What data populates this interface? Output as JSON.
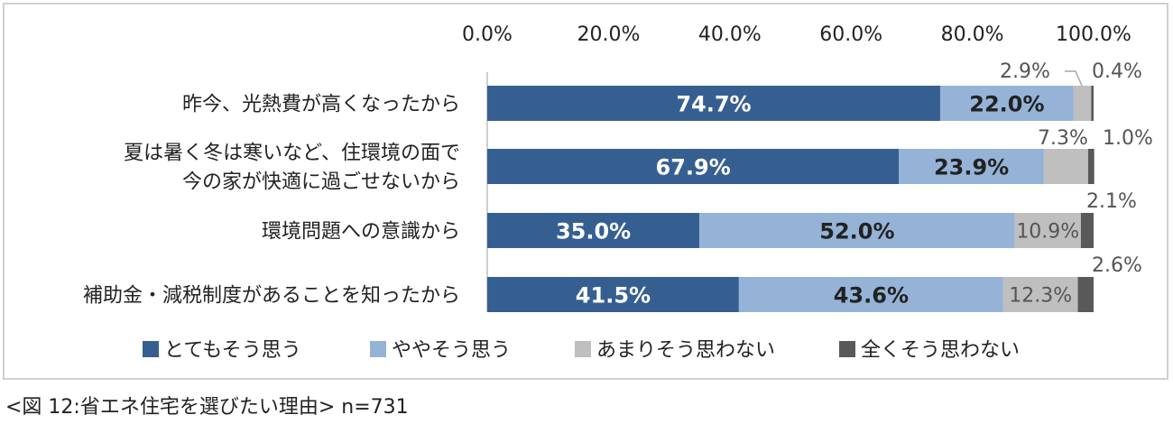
{
  "chart_data": {
    "type": "bar",
    "orientation": "horizontal",
    "stacked": true,
    "categories": [
      [
        "昨今、光熱費が高くなったから"
      ],
      [
        "夏は暑く冬は寒いなど、住環境の面で",
        "今の家が快適に過ごせないから"
      ],
      [
        "環境問題への意識から"
      ],
      [
        "補助金・減税制度があることを知ったから"
      ]
    ],
    "series": [
      {
        "name": "とてもそう思う",
        "values": [
          74.7,
          67.9,
          35.0,
          41.5
        ],
        "labels": [
          "74.7%",
          "67.9%",
          "35.0%",
          "41.5%"
        ],
        "color": "#365f91"
      },
      {
        "name": "ややそう思う",
        "values": [
          22.0,
          23.9,
          52.0,
          43.6
        ],
        "labels": [
          "22.0%",
          "23.9%",
          "52.0%",
          "43.6%"
        ],
        "color": "#95b3d7"
      },
      {
        "name": "あまりそう思わない",
        "values": [
          2.9,
          7.3,
          10.9,
          12.3
        ],
        "labels": [
          "2.9%",
          "7.3%",
          "10.9%",
          "12.3%"
        ],
        "color": "#bfbfbf"
      },
      {
        "name": "全くそう思わない",
        "values": [
          0.4,
          1.0,
          2.1,
          2.6
        ],
        "labels": [
          "0.4%",
          "1.0%",
          "2.1%",
          "2.6%"
        ],
        "color": "#595959"
      }
    ],
    "xlim": [
      0,
      100
    ],
    "ticks": [
      "0.0%",
      "20.0%",
      "40.0%",
      "60.0%",
      "80.0%",
      "100.0%"
    ],
    "axis_position": "top",
    "grid": false,
    "legend_position": "bottom"
  },
  "caption": "<図 12:省エネ住宅を選びたい理由> n=731"
}
